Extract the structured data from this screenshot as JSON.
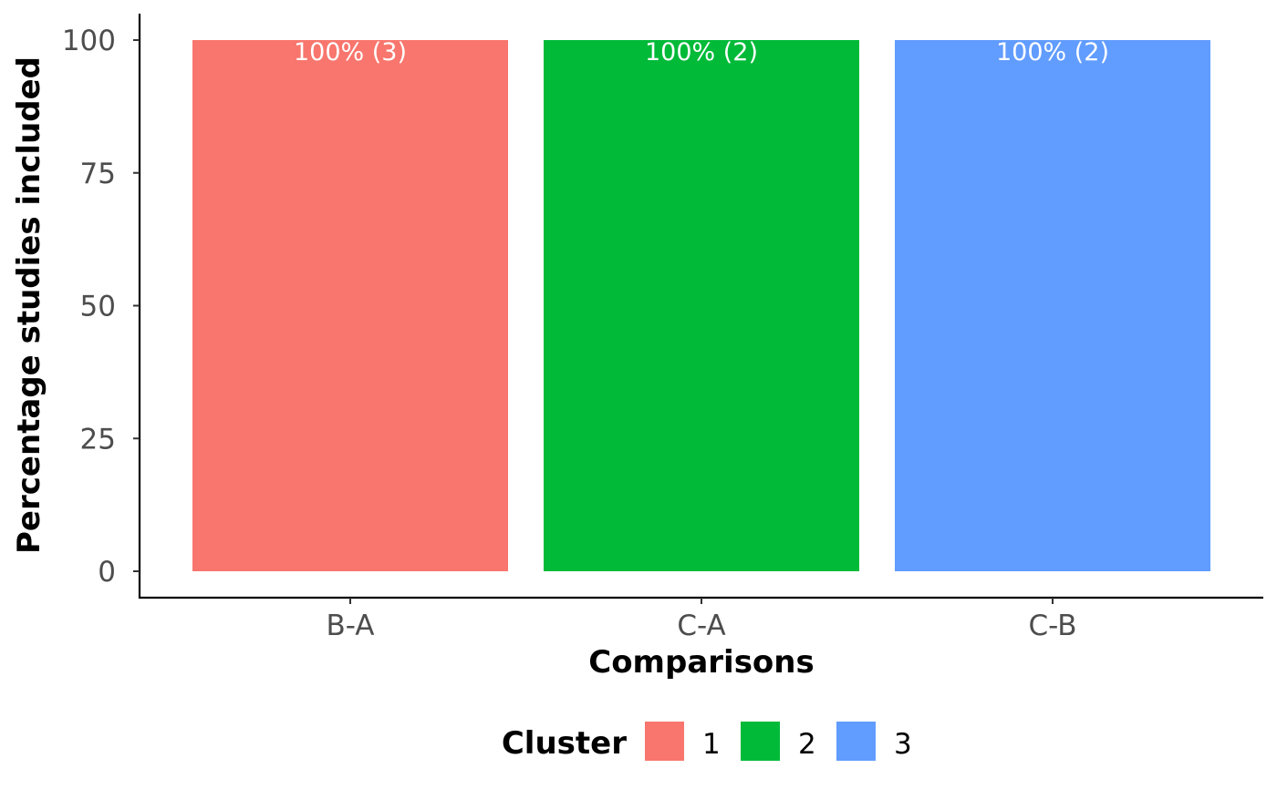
{
  "chart_data": {
    "type": "bar",
    "categories": [
      "B-A",
      "C-A",
      "C-B"
    ],
    "values": [
      100,
      100,
      100
    ],
    "data_labels": [
      "100% (3)",
      "100% (2)",
      "100% (2)"
    ],
    "bar_clusters": [
      "1",
      "2",
      "3"
    ],
    "title": "",
    "xlabel": "Comparisons",
    "ylabel": "Percentage studies included",
    "ylim": [
      0,
      100
    ],
    "yticks": [
      0,
      25,
      50,
      75,
      100
    ],
    "grid": false,
    "legend": {
      "title": "Cluster",
      "position": "bottom",
      "items": [
        {
          "label": "1",
          "color": "#F8766D"
        },
        {
          "label": "2",
          "color": "#00BA38"
        },
        {
          "label": "3",
          "color": "#619CFF"
        }
      ]
    }
  }
}
